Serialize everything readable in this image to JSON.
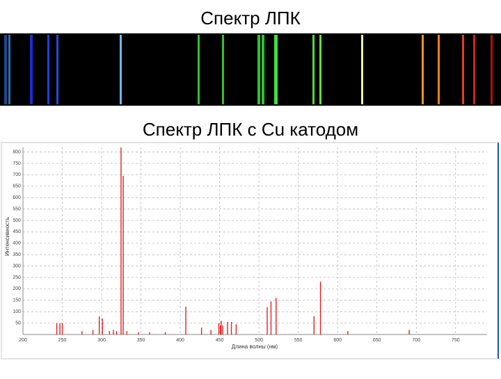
{
  "title": "Спектр ЛПК",
  "subtitle": "Спектр ЛПК с Cu катодом",
  "chart_data": {
    "type": "stem",
    "x_label": "Длина волны (нм)",
    "y_label": "Интенсивность",
    "x": [
      243,
      247,
      250,
      275,
      289,
      297,
      301,
      310,
      315,
      319,
      324.7,
      327.4,
      332,
      347,
      361,
      381,
      407,
      427,
      439,
      449,
      451,
      452,
      454,
      460,
      465,
      471,
      510.5,
      515.3,
      521.8,
      570,
      578.2,
      613,
      691
    ],
    "values": [
      50,
      50,
      50,
      15,
      20,
      80,
      70,
      15,
      20,
      15,
      820,
      695,
      15,
      10,
      10,
      10,
      122,
      30,
      20,
      50,
      40,
      60,
      40,
      55,
      55,
      45,
      120,
      145,
      160,
      80,
      232,
      15,
      20
    ],
    "color": "#e02020",
    "xlim": [
      200,
      790
    ],
    "ylim": [
      0,
      820
    ],
    "xticks": [
      200,
      250,
      300,
      350,
      400,
      450,
      500,
      550,
      600,
      650,
      700,
      750
    ],
    "yticks": [
      50,
      100,
      150,
      200,
      250,
      300,
      350,
      400,
      450,
      500,
      550,
      600,
      650,
      700,
      750,
      800
    ],
    "grid": true
  }
}
